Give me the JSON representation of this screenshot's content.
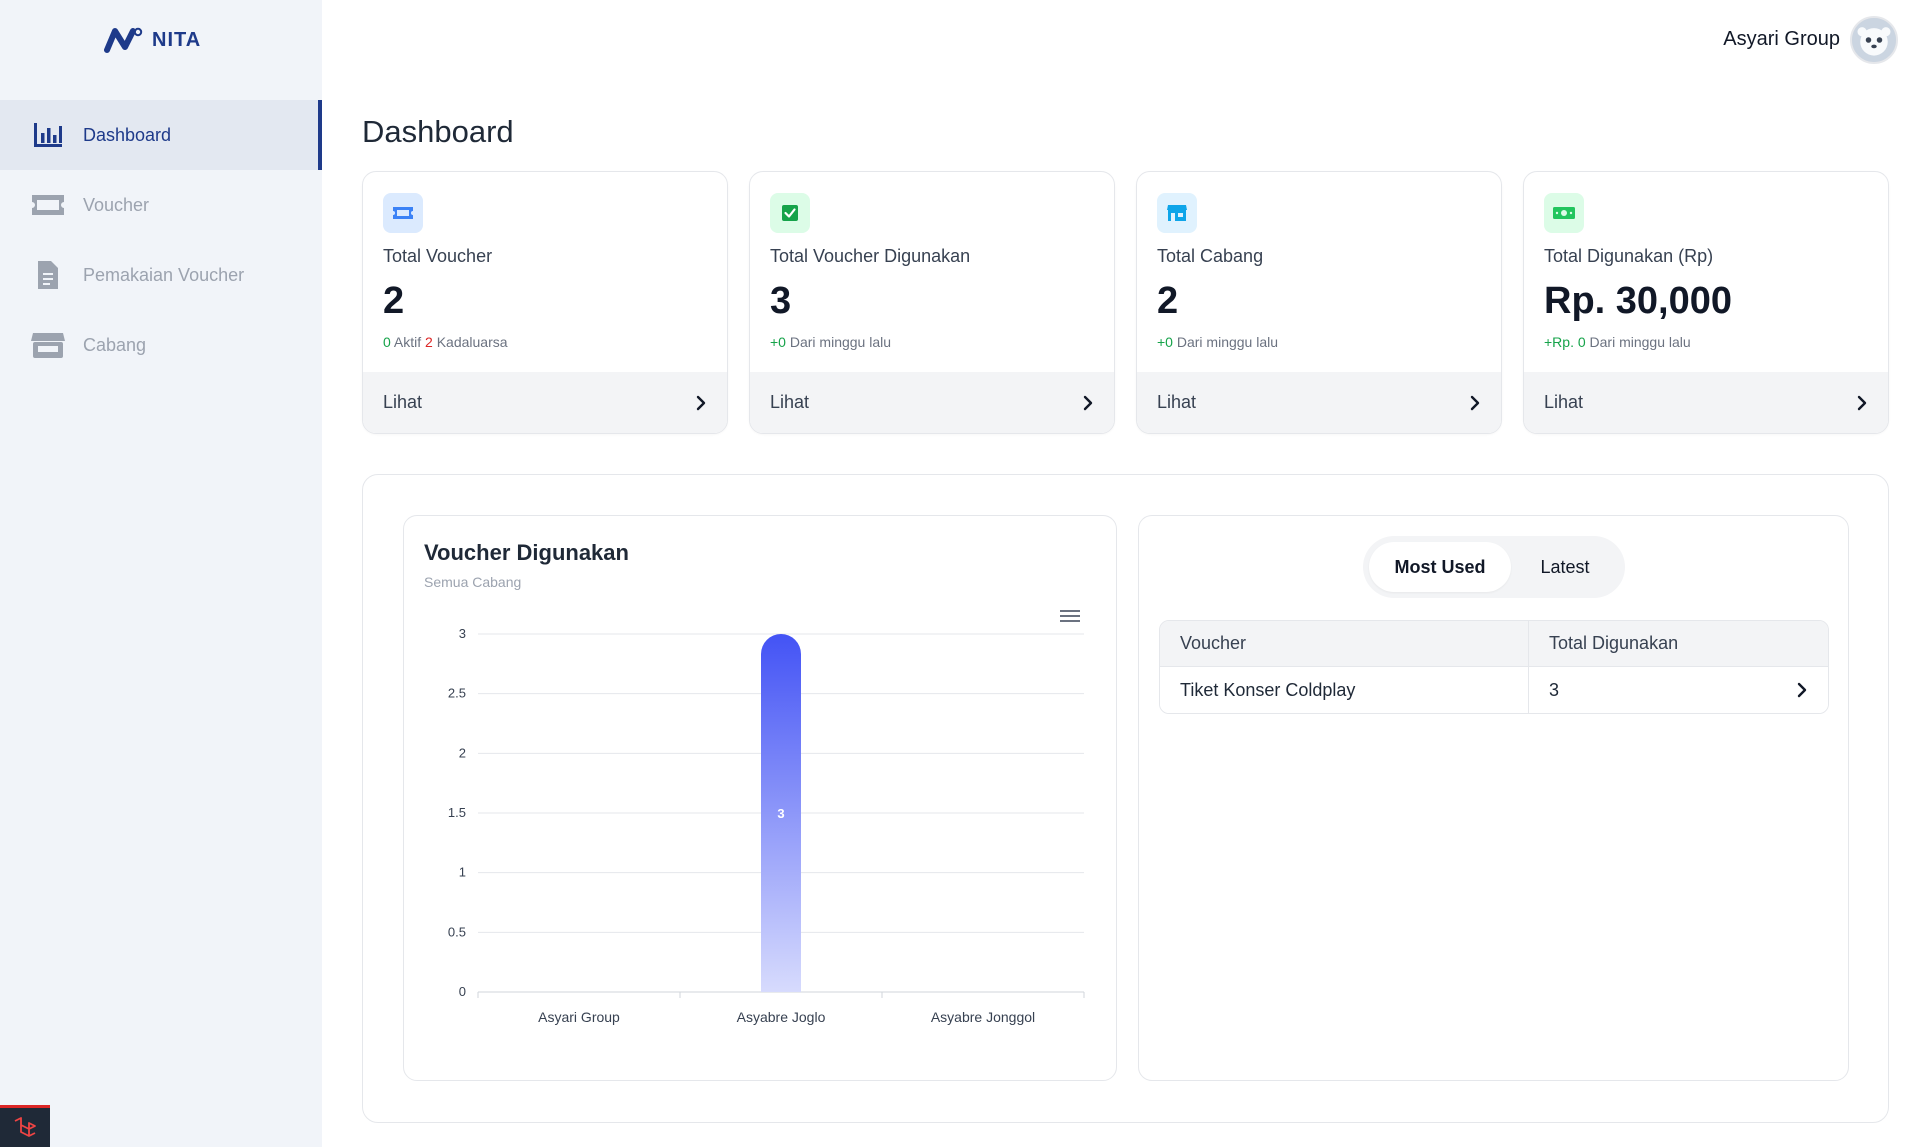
{
  "app": {
    "logo_text": "NITA"
  },
  "sidebar": {
    "items": [
      {
        "label": "Dashboard",
        "icon": "bar-chart-icon",
        "active": true
      },
      {
        "label": "Voucher",
        "icon": "ticket-icon",
        "active": false
      },
      {
        "label": "Pemakaian Voucher",
        "icon": "document-icon",
        "active": false
      },
      {
        "label": "Cabang",
        "icon": "store-icon",
        "active": false
      }
    ]
  },
  "header": {
    "user_name": "Asyari Group"
  },
  "page": {
    "title": "Dashboard"
  },
  "cards": [
    {
      "title": "Total Voucher",
      "value": "2",
      "sub_a": "0",
      "sub_a_text": " Aktif ",
      "sub_b": "2",
      "sub_b_text": " Kadaluarsa",
      "footer": "Lihat",
      "icon": "ticket-icon",
      "icon_bg": "#dbeafe",
      "icon_color": "#3b82f6"
    },
    {
      "title": "Total Voucher Digunakan",
      "value": "3",
      "sub_a": "+0",
      "sub_a_text": " Dari minggu lalu",
      "footer": "Lihat",
      "icon": "check-square-icon",
      "icon_bg": "#dcfce7",
      "icon_color": "#16a34a"
    },
    {
      "title": "Total Cabang",
      "value": "2",
      "sub_a": "+0",
      "sub_a_text": " Dari minggu lalu",
      "footer": "Lihat",
      "icon": "store-icon",
      "icon_bg": "#e0f2fe",
      "icon_color": "#0ea5e9"
    },
    {
      "title": "Total Digunakan (Rp)",
      "value": "Rp. 30,000",
      "sub_a": "+Rp. 0",
      "sub_a_text": " Dari minggu lalu",
      "footer": "Lihat",
      "icon": "cash-icon",
      "icon_bg": "#dcfce7",
      "icon_color": "#22c55e"
    }
  ],
  "chart": {
    "title": "Voucher Digunakan",
    "subtitle": "Semua Cabang"
  },
  "chart_data": {
    "type": "bar",
    "title": "Voucher Digunakan",
    "subtitle": "Semua Cabang",
    "categories": [
      "Asyari Group",
      "Asyabre Joglo",
      "Asyabre Jonggol"
    ],
    "values": [
      0,
      3,
      0
    ],
    "data_labels": [
      "",
      "3",
      ""
    ],
    "yticks": [
      "0",
      "0.5",
      "1",
      "1.5",
      "2",
      "2.5",
      "3"
    ],
    "ylim": [
      0,
      3
    ],
    "grid": true,
    "bar_color": "#4353f5"
  },
  "usage_table": {
    "tabs": [
      "Most Used",
      "Latest"
    ],
    "active_tab": "Most Used",
    "columns": [
      "Voucher",
      "Total Digunakan"
    ],
    "rows": [
      {
        "voucher": "Tiket Konser Coldplay",
        "total": "3"
      }
    ]
  },
  "colors": {
    "primary": "#1e3a8a",
    "green": "#16a34a",
    "red": "#dc2626"
  }
}
